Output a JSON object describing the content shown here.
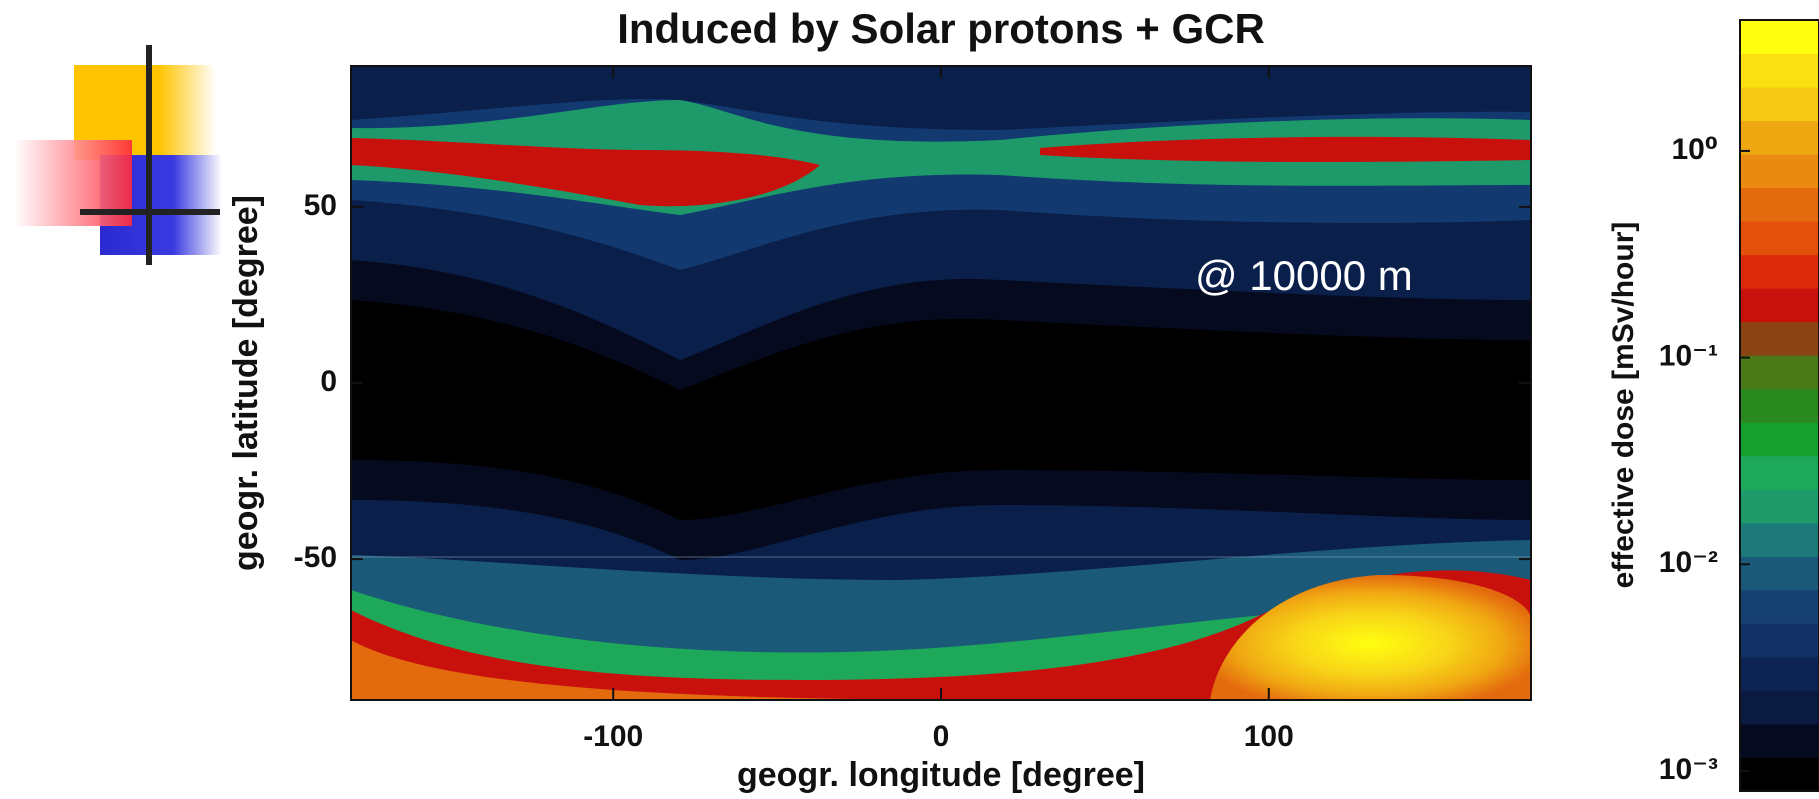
{
  "chart_data": {
    "type": "contour",
    "title": "Induced by Solar protons + GCR",
    "xlabel": "geogr. longitude [degree]",
    "ylabel": "geogr. latitude [degree]",
    "annotation": "@ 10000 m",
    "xlim": [
      -180,
      180
    ],
    "ylim": [
      -90,
      90
    ],
    "xticks": [
      -100,
      0,
      100
    ],
    "yticks": [
      -50,
      0,
      50
    ],
    "colorbar": {
      "label": "effective dose [mSv/hour]",
      "log_scale": true,
      "lim": [
        0.0008,
        4.3
      ],
      "ticks": [
        {
          "value": 0.001,
          "label": "10⁻³"
        },
        {
          "value": 0.01,
          "label": "10⁻²"
        },
        {
          "value": 0.1,
          "label": "10⁻¹"
        },
        {
          "value": 1,
          "label": "10⁰"
        }
      ],
      "colors": [
        "#000000",
        "#050a1e",
        "#0a1a40",
        "#0d2455",
        "#123266",
        "#164070",
        "#1a5a78",
        "#1e7a78",
        "#1f9a6a",
        "#1ea85a",
        "#15a030",
        "#2a8a20",
        "#4a7a18",
        "#8a4414",
        "#c8100c",
        "#dc2a0c",
        "#e2500c",
        "#e46a0e",
        "#ea8a10",
        "#f0a812",
        "#f6c814",
        "#fae010",
        "#ffff10"
      ]
    }
  }
}
